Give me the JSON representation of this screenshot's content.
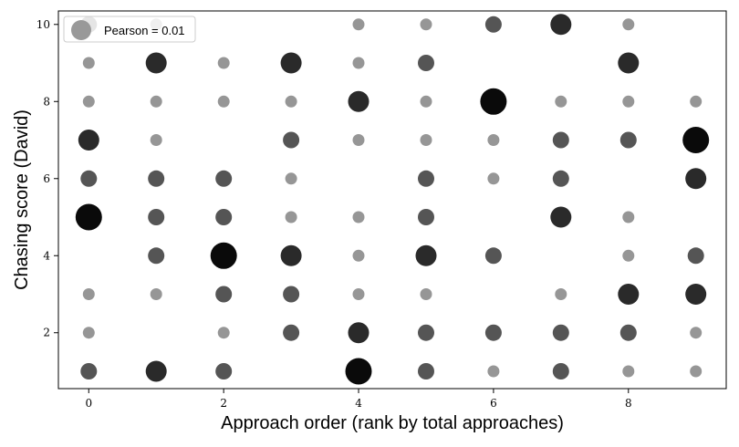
{
  "chart_data": {
    "type": "scatter",
    "title": "",
    "xlabel": "Approach order (rank by total approaches)",
    "ylabel": "Chasing score (David)",
    "xlim": [
      -0.45,
      9.45
    ],
    "ylim": [
      0.55,
      10.35
    ],
    "x_ticks": [
      0,
      2,
      4,
      6,
      8
    ],
    "y_ticks": [
      2,
      4,
      6,
      8,
      10
    ],
    "grid": false,
    "legend": {
      "placement": "top-left",
      "label": "Pearson = 0.01",
      "marker_color": "#999999"
    },
    "size_levels": [
      "small",
      "medium",
      "large",
      "xlarge"
    ],
    "color_by_level": {
      "small": "#969696",
      "medium": "#555555",
      "large": "#2a2a2a",
      "xlarge": "#0a0a0a"
    },
    "points": [
      {
        "x": 0,
        "y": 10,
        "s": "medium"
      },
      {
        "x": 1,
        "y": 10,
        "s": "small"
      },
      {
        "x": 4,
        "y": 10,
        "s": "small"
      },
      {
        "x": 5,
        "y": 10,
        "s": "small"
      },
      {
        "x": 6,
        "y": 10,
        "s": "medium"
      },
      {
        "x": 7,
        "y": 10,
        "s": "large"
      },
      {
        "x": 8,
        "y": 10,
        "s": "small"
      },
      {
        "x": 0,
        "y": 9,
        "s": "small"
      },
      {
        "x": 1,
        "y": 9,
        "s": "large"
      },
      {
        "x": 2,
        "y": 9,
        "s": "small"
      },
      {
        "x": 3,
        "y": 9,
        "s": "large"
      },
      {
        "x": 4,
        "y": 9,
        "s": "small"
      },
      {
        "x": 5,
        "y": 9,
        "s": "medium"
      },
      {
        "x": 8,
        "y": 9,
        "s": "large"
      },
      {
        "x": 0,
        "y": 8,
        "s": "small"
      },
      {
        "x": 1,
        "y": 8,
        "s": "small"
      },
      {
        "x": 2,
        "y": 8,
        "s": "small"
      },
      {
        "x": 3,
        "y": 8,
        "s": "small"
      },
      {
        "x": 4,
        "y": 8,
        "s": "large"
      },
      {
        "x": 5,
        "y": 8,
        "s": "small"
      },
      {
        "x": 6,
        "y": 8,
        "s": "xlarge"
      },
      {
        "x": 7,
        "y": 8,
        "s": "small"
      },
      {
        "x": 8,
        "y": 8,
        "s": "small"
      },
      {
        "x": 9,
        "y": 8,
        "s": "small"
      },
      {
        "x": 0,
        "y": 7,
        "s": "large"
      },
      {
        "x": 1,
        "y": 7,
        "s": "small"
      },
      {
        "x": 3,
        "y": 7,
        "s": "medium"
      },
      {
        "x": 4,
        "y": 7,
        "s": "small"
      },
      {
        "x": 5,
        "y": 7,
        "s": "small"
      },
      {
        "x": 6,
        "y": 7,
        "s": "small"
      },
      {
        "x": 7,
        "y": 7,
        "s": "medium"
      },
      {
        "x": 8,
        "y": 7,
        "s": "medium"
      },
      {
        "x": 9,
        "y": 7,
        "s": "xlarge"
      },
      {
        "x": 0,
        "y": 6,
        "s": "medium"
      },
      {
        "x": 1,
        "y": 6,
        "s": "medium"
      },
      {
        "x": 2,
        "y": 6,
        "s": "medium"
      },
      {
        "x": 3,
        "y": 6,
        "s": "small"
      },
      {
        "x": 5,
        "y": 6,
        "s": "medium"
      },
      {
        "x": 6,
        "y": 6,
        "s": "small"
      },
      {
        "x": 7,
        "y": 6,
        "s": "medium"
      },
      {
        "x": 9,
        "y": 6,
        "s": "large"
      },
      {
        "x": 0,
        "y": 5,
        "s": "xlarge"
      },
      {
        "x": 1,
        "y": 5,
        "s": "medium"
      },
      {
        "x": 2,
        "y": 5,
        "s": "medium"
      },
      {
        "x": 3,
        "y": 5,
        "s": "small"
      },
      {
        "x": 4,
        "y": 5,
        "s": "small"
      },
      {
        "x": 5,
        "y": 5,
        "s": "medium"
      },
      {
        "x": 7,
        "y": 5,
        "s": "large"
      },
      {
        "x": 8,
        "y": 5,
        "s": "small"
      },
      {
        "x": 1,
        "y": 4,
        "s": "medium"
      },
      {
        "x": 2,
        "y": 4,
        "s": "xlarge"
      },
      {
        "x": 3,
        "y": 4,
        "s": "large"
      },
      {
        "x": 4,
        "y": 4,
        "s": "small"
      },
      {
        "x": 5,
        "y": 4,
        "s": "large"
      },
      {
        "x": 6,
        "y": 4,
        "s": "medium"
      },
      {
        "x": 8,
        "y": 4,
        "s": "small"
      },
      {
        "x": 9,
        "y": 4,
        "s": "medium"
      },
      {
        "x": 0,
        "y": 3,
        "s": "small"
      },
      {
        "x": 1,
        "y": 3,
        "s": "small"
      },
      {
        "x": 2,
        "y": 3,
        "s": "medium"
      },
      {
        "x": 3,
        "y": 3,
        "s": "medium"
      },
      {
        "x": 4,
        "y": 3,
        "s": "small"
      },
      {
        "x": 5,
        "y": 3,
        "s": "small"
      },
      {
        "x": 7,
        "y": 3,
        "s": "small"
      },
      {
        "x": 8,
        "y": 3,
        "s": "large"
      },
      {
        "x": 9,
        "y": 3,
        "s": "large"
      },
      {
        "x": 0,
        "y": 2,
        "s": "small"
      },
      {
        "x": 2,
        "y": 2,
        "s": "small"
      },
      {
        "x": 3,
        "y": 2,
        "s": "medium"
      },
      {
        "x": 4,
        "y": 2,
        "s": "large"
      },
      {
        "x": 5,
        "y": 2,
        "s": "medium"
      },
      {
        "x": 6,
        "y": 2,
        "s": "medium"
      },
      {
        "x": 7,
        "y": 2,
        "s": "medium"
      },
      {
        "x": 8,
        "y": 2,
        "s": "medium"
      },
      {
        "x": 9,
        "y": 2,
        "s": "small"
      },
      {
        "x": 0,
        "y": 1,
        "s": "medium"
      },
      {
        "x": 1,
        "y": 1,
        "s": "large"
      },
      {
        "x": 2,
        "y": 1,
        "s": "medium"
      },
      {
        "x": 4,
        "y": 1,
        "s": "xlarge"
      },
      {
        "x": 5,
        "y": 1,
        "s": "medium"
      },
      {
        "x": 6,
        "y": 1,
        "s": "small"
      },
      {
        "x": 7,
        "y": 1,
        "s": "medium"
      },
      {
        "x": 8,
        "y": 1,
        "s": "small"
      },
      {
        "x": 9,
        "y": 1,
        "s": "small"
      }
    ]
  }
}
